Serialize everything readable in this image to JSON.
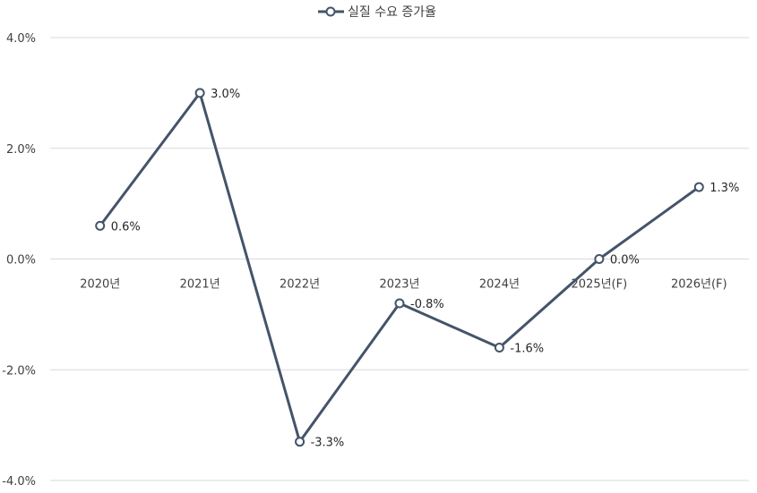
{
  "chart_data": {
    "type": "line",
    "categories": [
      "2020년",
      "2021년",
      "2022년",
      "2023년",
      "2024년",
      "2025년(F)",
      "2026년(F)"
    ],
    "series": [
      {
        "name": "실질 수요 증가율",
        "values": [
          0.6,
          3.0,
          -3.3,
          -0.8,
          -1.6,
          0.0,
          1.3
        ],
        "labels": [
          "0.6%",
          "3.0%",
          "-3.3%",
          "-0.8%",
          "-1.6%",
          "0.0%",
          "1.3%"
        ]
      }
    ],
    "y_ticks": [
      4.0,
      2.0,
      0.0,
      -2.0,
      -4.0
    ],
    "y_tick_labels": [
      "4.0%",
      "2.0%",
      "0.0%",
      "-2.0%",
      "-4.0%"
    ],
    "ylim": [
      -4.0,
      4.0
    ],
    "grid": true,
    "legend_position": "top-center",
    "colors": {
      "series": "#44546a",
      "marker_fill": "#ffffff",
      "grid": "#d9d9d9"
    }
  }
}
